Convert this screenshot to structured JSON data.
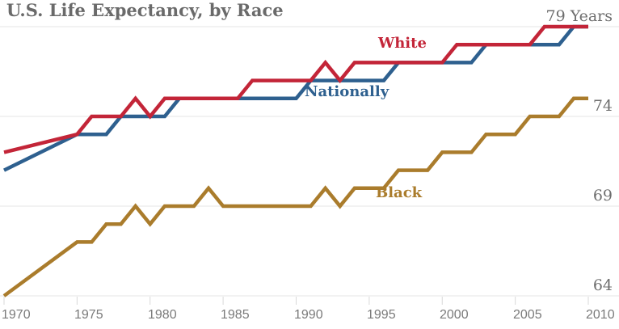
{
  "title": "U.S. Life Expectancy, by Race",
  "chart_data": {
    "type": "line",
    "x": [
      1970,
      1975,
      1976,
      1977,
      1978,
      1979,
      1980,
      1981,
      1982,
      1983,
      1984,
      1985,
      1986,
      1987,
      1988,
      1989,
      1990,
      1991,
      1992,
      1993,
      1994,
      1995,
      1996,
      1997,
      1998,
      1999,
      2000,
      2001,
      2002,
      2003,
      2004,
      2005,
      2006,
      2007,
      2008,
      2009,
      2010
    ],
    "series": [
      {
        "name": "black",
        "label": "Black",
        "color": "#AA7C2C",
        "values": [
          64,
          67,
          67,
          68,
          68,
          69,
          68,
          69,
          69,
          69,
          70,
          69,
          69,
          69,
          69,
          69,
          69,
          69,
          70,
          69,
          70,
          70,
          70,
          71,
          71,
          71,
          72,
          72,
          72,
          73,
          73,
          73,
          74,
          74,
          74,
          75,
          75
        ]
      },
      {
        "name": "nationally",
        "label": "Nationally",
        "color": "#2E608F",
        "values": [
          71,
          73,
          73,
          73,
          74,
          74,
          74,
          74,
          75,
          75,
          75,
          75,
          75,
          75,
          75,
          75,
          75,
          76,
          76,
          76,
          76,
          76,
          76,
          77,
          77,
          77,
          77,
          77,
          77,
          78,
          78,
          78,
          78,
          78,
          78,
          79,
          79
        ]
      },
      {
        "name": "white",
        "label": "White",
        "color": "#C32538",
        "values": [
          72,
          73,
          74,
          74,
          74,
          75,
          74,
          75,
          75,
          75,
          75,
          75,
          75,
          76,
          76,
          76,
          76,
          76,
          77,
          76,
          77,
          77,
          77,
          77,
          77,
          77,
          77,
          78,
          78,
          78,
          78,
          78,
          78,
          79,
          79,
          79,
          79
        ]
      }
    ],
    "x_axis": {
      "range": [
        1970,
        2010
      ],
      "tick_years": [
        1970,
        1975,
        1980,
        1985,
        1990,
        1995,
        2000,
        2005,
        2010
      ],
      "tick_labels": [
        "1970",
        "1975",
        "1980",
        "1985",
        "1990",
        "1995",
        "2000",
        "2005",
        "2010"
      ]
    },
    "y_axis": {
      "unit_suffix_on_top_label": "Years",
      "tick_values": [
        79,
        74,
        69,
        64
      ],
      "tick_labels": [
        "79 Years",
        "74",
        "69",
        "64"
      ]
    },
    "grid": "horizontal",
    "legend_position": "direct-labels-on-lines",
    "colors": {
      "grid": "#e4e4e4",
      "tick_mark": "#d9d9d9",
      "title_text": "#6a6a6a",
      "axis_value_text": "#6e6e6e",
      "x_tick_text": "#7a7a7a",
      "background": "#ffffff"
    }
  }
}
